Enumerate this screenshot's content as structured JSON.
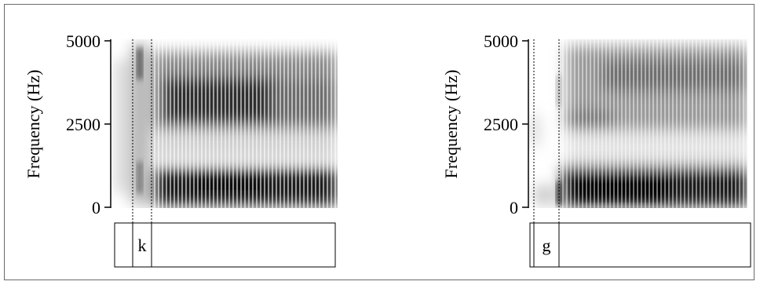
{
  "chart_data": [
    {
      "type": "heatmap",
      "ylabel": "Frequency (Hz)",
      "ylim": [
        0,
        5000
      ],
      "yticks": [
        "5000",
        "2500",
        "0"
      ],
      "ytick_values": [
        5000,
        2500,
        0
      ],
      "tier_segments": [
        "",
        "k",
        ""
      ]
    },
    {
      "type": "heatmap",
      "ylabel": "Frequency (Hz)",
      "ylim": [
        0,
        5000
      ],
      "yticks": [
        "5000",
        "2500",
        "0"
      ],
      "ytick_values": [
        5000,
        2500,
        0
      ],
      "tier_segments": [
        "",
        "g",
        ""
      ]
    }
  ]
}
